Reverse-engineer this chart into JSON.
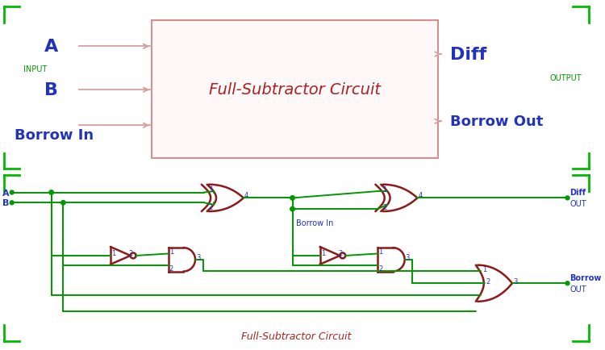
{
  "bg_color": "#ffffff",
  "border_color": "#00bb00",
  "top_box_edge": "#d49090",
  "top_box_fill": "#fff8f8",
  "gate_color": "#8b1a1a",
  "wire_color": "#009900",
  "blue": "#2233bb",
  "green": "#009900",
  "red": "#aa2222",
  "title": "Full-Subtractor Circuit",
  "bottom_title": "Full-Subtractor Circuit",
  "input_label": "INPUT",
  "output_label": "OUTPUT"
}
